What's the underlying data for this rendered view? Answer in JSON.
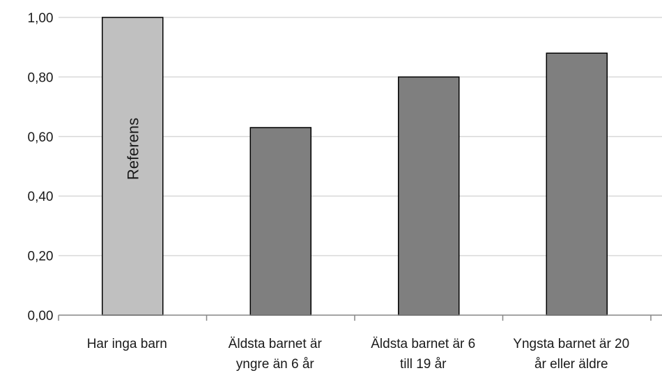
{
  "chart_data": {
    "type": "bar",
    "categories": [
      [
        "Har inga barn"
      ],
      [
        "Äldsta barnet är",
        "yngre än 6 år"
      ],
      [
        "Äldsta barnet är 6",
        "till 19 år"
      ],
      [
        "Yngsta barnet är 20",
        "år eller äldre"
      ]
    ],
    "values": [
      1.0,
      0.63,
      0.8,
      0.88
    ],
    "bar_colors": [
      "#c0c0c0",
      "#7f7f7f",
      "#7f7f7f",
      "#7f7f7f"
    ],
    "bar_annotations": [
      "Referens",
      "",
      "",
      ""
    ],
    "ylim": [
      0,
      1
    ],
    "yticks": [
      "0,00",
      "0,20",
      "0,40",
      "0,60",
      "0,80",
      "1,00"
    ],
    "ytick_values": [
      0,
      0.2,
      0.4,
      0.6,
      0.8,
      1.0
    ],
    "grid": true,
    "gridline_color": "#d9d9d9",
    "axis_color": "#868686",
    "title": "",
    "xlabel": "",
    "ylabel": ""
  }
}
